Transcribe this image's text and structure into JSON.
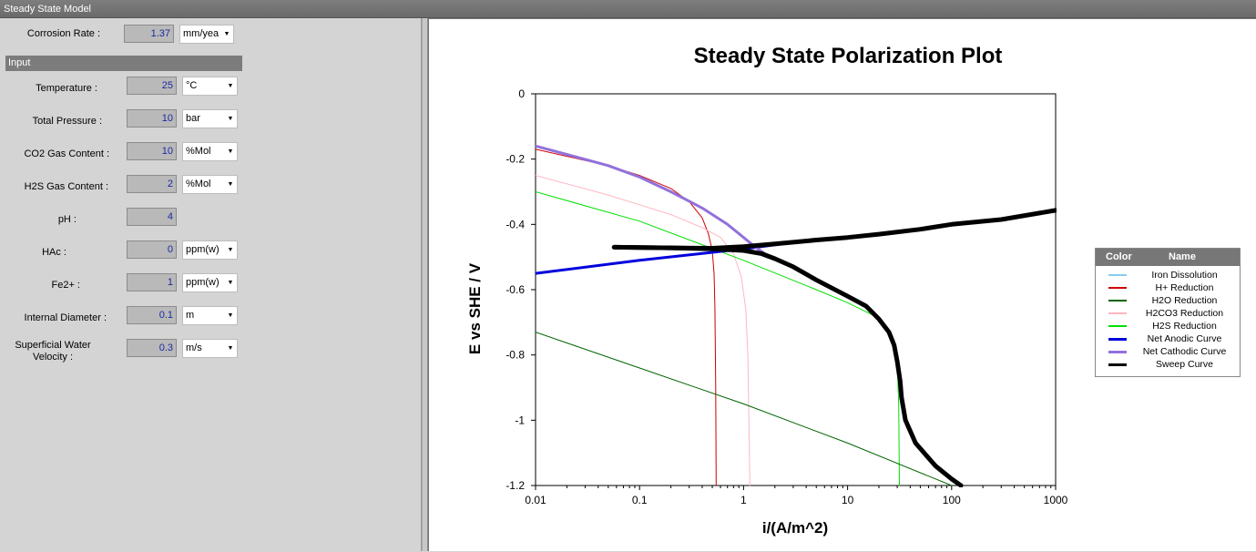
{
  "window": {
    "title": "Steady State Model"
  },
  "corrosion": {
    "label": "Corrosion Rate :",
    "value": "1.37",
    "unit": "mm/yea"
  },
  "input_header": "Input",
  "inputs": [
    {
      "label": "Temperature :",
      "value": "25",
      "unit": "°C"
    },
    {
      "label": "Total Pressure :",
      "value": "10",
      "unit": "bar"
    },
    {
      "label": "CO2 Gas Content :",
      "value": "10",
      "unit": "%Mol"
    },
    {
      "label": "H2S Gas Content :",
      "value": "2",
      "unit": "%Mol"
    },
    {
      "label": "pH :",
      "value": "4",
      "unit": ""
    },
    {
      "label": "HAc :",
      "value": "0",
      "unit": "ppm(w)"
    },
    {
      "label": "Fe2+ :",
      "value": "1",
      "unit": "ppm(w)"
    },
    {
      "label": "Internal Diameter :",
      "value": "0.1",
      "unit": "m"
    },
    {
      "label_line1": "Superficial Water",
      "label_line2": "Velocity :",
      "value": "0.3",
      "unit": "m/s"
    }
  ],
  "legend": {
    "col_color": "Color",
    "col_name": "Name",
    "items": [
      {
        "name": "Iron Dissolution",
        "color": "#87ceeb"
      },
      {
        "name": "H+ Reduction",
        "color": "#cc0000"
      },
      {
        "name": "H2O Reduction",
        "color": "#006400"
      },
      {
        "name": "H2CO3 Reduction",
        "color": "#ffb6c1"
      },
      {
        "name": "H2S Reduction",
        "color": "#00e000"
      },
      {
        "name": "Net Anodic Curve",
        "color": "#0000dd"
      },
      {
        "name": "Net Cathodic Curve",
        "color": "#9370db"
      },
      {
        "name": "Sweep Curve",
        "color": "#000000"
      }
    ]
  },
  "chart_data": {
    "type": "line",
    "title": "Steady State Polarization Plot",
    "xlabel": "i/(A/m^2)",
    "ylabel": "E vs SHE / V",
    "xscale": "log",
    "xlim": [
      0.01,
      1000
    ],
    "ylim": [
      -1.2,
      0
    ],
    "x_ticks": [
      "0.01",
      "0.1",
      "1",
      "10",
      "100",
      "1000"
    ],
    "y_ticks": [
      "0",
      "-0.2",
      "-0.4",
      "-0.6",
      "-0.8",
      "-1",
      "-1.2"
    ],
    "grid": false,
    "legend_position": "right",
    "series": [
      {
        "name": "H+ Reduction",
        "color": "#cc0000",
        "width": 1,
        "x": [
          0.01,
          0.05,
          0.1,
          0.2,
          0.3,
          0.4,
          0.46,
          0.5,
          0.52,
          0.53,
          0.54,
          0.545
        ],
        "y": [
          -0.17,
          -0.22,
          -0.25,
          -0.29,
          -0.33,
          -0.38,
          -0.43,
          -0.48,
          -0.55,
          -0.65,
          -0.9,
          -1.2
        ]
      },
      {
        "name": "H2CO3 Reduction",
        "color": "#ffb6c1",
        "width": 1,
        "x": [
          0.01,
          0.05,
          0.1,
          0.2,
          0.4,
          0.6,
          0.8,
          0.95,
          1.05,
          1.1,
          1.15
        ],
        "y": [
          -0.25,
          -0.31,
          -0.34,
          -0.37,
          -0.41,
          -0.44,
          -0.49,
          -0.56,
          -0.66,
          -0.8,
          -1.2
        ]
      },
      {
        "name": "H2S Reduction",
        "color": "#00e000",
        "width": 1,
        "x": [
          0.01,
          0.1,
          1,
          5,
          10,
          18,
          24,
          28,
          30,
          31,
          31.5
        ],
        "y": [
          -0.3,
          -0.39,
          -0.51,
          -0.6,
          -0.64,
          -0.68,
          -0.72,
          -0.77,
          -0.82,
          -0.95,
          -1.2
        ]
      },
      {
        "name": "H2O Reduction",
        "color": "#006400",
        "width": 1,
        "x": [
          0.01,
          0.1,
          1,
          10,
          100
        ],
        "y": [
          -0.73,
          -0.84,
          -0.95,
          -1.07,
          -1.2
        ]
      },
      {
        "name": "Net Anodic Curve",
        "color": "#0000dd",
        "width": 3,
        "x": [
          0.01,
          0.1,
          1,
          2.6
        ],
        "y": [
          -0.55,
          -0.51,
          -0.475,
          -0.458
        ]
      },
      {
        "name": "Net Cathodic Curve",
        "color": "#9370db",
        "width": 3,
        "x": [
          0.01,
          0.05,
          0.1,
          0.2,
          0.4,
          0.7,
          1.0,
          1.3,
          1.6
        ],
        "y": [
          -0.16,
          -0.22,
          -0.255,
          -0.3,
          -0.35,
          -0.4,
          -0.44,
          -0.47,
          -0.49
        ]
      },
      {
        "name": "Sweep Curve",
        "color": "#000000",
        "width": 5,
        "x": [
          0.057,
          0.2,
          0.5,
          1,
          1.5,
          2,
          3,
          5,
          10,
          15,
          20,
          25,
          28,
          30,
          32,
          33,
          36,
          45,
          70,
          100,
          123,
          300,
          1000
        ],
        "y": [
          -0.47,
          -0.472,
          -0.475,
          -0.48,
          -0.49,
          -0.505,
          -0.53,
          -0.57,
          -0.62,
          -0.65,
          -0.69,
          -0.73,
          -0.77,
          -0.82,
          -0.88,
          -0.93,
          -1.0,
          -1.07,
          -1.14,
          -1.18,
          -1.2,
          null,
          null
        ]
      },
      {
        "name": "Sweep Curve",
        "color": "#000000",
        "width": 5,
        "x": [
          0.057,
          0.2,
          0.5,
          1,
          2,
          5,
          10,
          20,
          50,
          100,
          300,
          1000
        ],
        "y": [
          -0.47,
          -0.472,
          -0.473,
          -0.468,
          -0.46,
          -0.448,
          -0.44,
          -0.43,
          -0.415,
          -0.4,
          -0.385,
          -0.357
        ]
      }
    ]
  }
}
